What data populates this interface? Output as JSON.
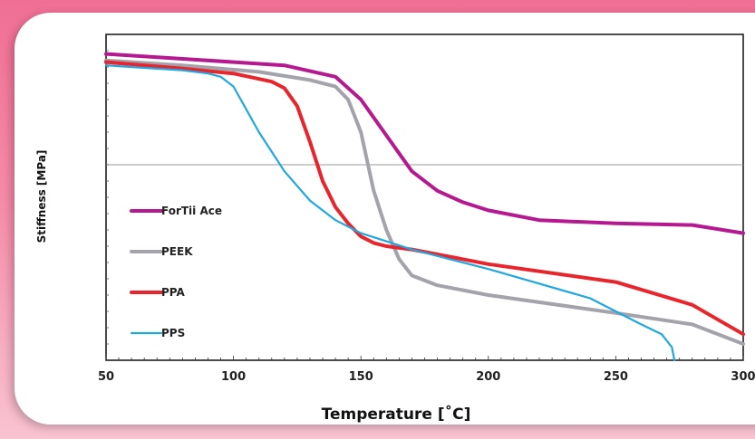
{
  "chart_data": {
    "type": "line",
    "xlabel": "Temperature [˚C]",
    "ylabel": "Stiffness [MPa]",
    "xlim": [
      50,
      300
    ],
    "ylim": [
      0,
      100
    ],
    "xticks": [
      "50",
      "100",
      "150",
      "200",
      "250",
      "300"
    ],
    "grid": "single horizontal line at mid-height",
    "legend_position": "left-center",
    "series": [
      {
        "name": "ForTii Ace",
        "color": "#b5198f",
        "x": [
          50,
          80,
          120,
          140,
          150,
          160,
          170,
          180,
          190,
          200,
          220,
          250,
          280,
          300
        ],
        "y": [
          94,
          92.5,
          90.5,
          87,
          80,
          69,
          58,
          52,
          48.5,
          46,
          43,
          42,
          41.5,
          39
        ]
      },
      {
        "name": "PEEK",
        "color": "#a3a3ab",
        "x": [
          50,
          80,
          110,
          130,
          140,
          145,
          150,
          155,
          160,
          165,
          170,
          180,
          200,
          250,
          280,
          300
        ],
        "y": [
          92,
          90.5,
          88.5,
          86,
          84,
          80,
          70,
          52,
          40,
          31,
          26,
          23,
          20,
          14.5,
          11,
          5
        ]
      },
      {
        "name": "PPA",
        "color": "#e8242c",
        "x": [
          50,
          80,
          100,
          115,
          120,
          125,
          130,
          135,
          140,
          145,
          150,
          155,
          160,
          170,
          200,
          250,
          280,
          300
        ],
        "y": [
          91.5,
          89.5,
          88,
          85.5,
          83.5,
          78,
          67,
          55,
          47,
          42,
          38,
          36,
          35,
          34,
          29.5,
          24,
          17,
          8
        ]
      },
      {
        "name": "PPS",
        "color": "#22a7e0",
        "x": [
          50,
          80,
          90,
          95,
          100,
          105,
          110,
          115,
          120,
          130,
          140,
          150,
          170,
          200,
          240,
          250,
          260,
          268,
          272,
          273
        ],
        "y": [
          90.5,
          89,
          88,
          87,
          84,
          77,
          70,
          64,
          58,
          49,
          43,
          39,
          34,
          28,
          19,
          15,
          11,
          8,
          4,
          0
        ]
      }
    ]
  }
}
